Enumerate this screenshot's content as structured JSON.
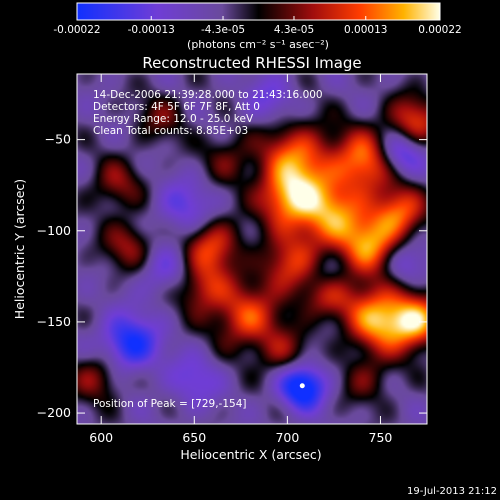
{
  "colorbar": {
    "tick_labels": [
      "-0.00022",
      "-0.00013",
      "-4.3e-05",
      "4.3e-05",
      "0.00013",
      "0.00022"
    ],
    "tick_values": [
      -0.00022,
      -0.00013,
      -4.3e-05,
      4.3e-05,
      0.00013,
      0.00022
    ],
    "range": [
      -0.00022,
      0.00022
    ],
    "units": "(photons cm⁻² s⁻¹ asec⁻²)"
  },
  "chart_data": {
    "type": "heatmap",
    "title": "Reconstructed RHESSI Image",
    "xlabel": "Heliocentric X (arcsec)",
    "ylabel": "Heliocentric Y (arcsec)",
    "xlim": [
      587,
      775
    ],
    "ylim": [
      -206,
      -14
    ],
    "x_ticks": [
      600,
      650,
      700,
      750
    ],
    "y_ticks": [
      -200,
      -150,
      -100,
      -50
    ],
    "x_tick_labels": [
      "600",
      "650",
      "700",
      "750"
    ],
    "y_tick_labels": [
      "−200",
      "−150",
      "−100",
      "−50"
    ],
    "annotations": [
      "14-Dec-2006 21:39:28.000 to 21:43:16.000",
      "Detectors: 4F 5F 6F 7F 8F, Att 0",
      "Energy Range: 12.0 - 25.0 keV",
      "Clean    Total counts: 8.85E+03"
    ],
    "peak_label": "Position of Peak = [729,-154]",
    "peak": [
      729,
      -154
    ],
    "blobs": [
      {
        "x": 705,
        "y": -60,
        "v": 0.8,
        "s": 14
      },
      {
        "x": 742,
        "y": -62,
        "v": 0.9,
        "s": 12
      },
      {
        "x": 768,
        "y": -40,
        "v": 0.7,
        "s": 10
      },
      {
        "x": 722,
        "y": -92,
        "v": 0.9,
        "s": 14
      },
      {
        "x": 700,
        "y": -82,
        "v": 0.8,
        "s": 11
      },
      {
        "x": 760,
        "y": -90,
        "v": 0.8,
        "s": 10
      },
      {
        "x": 745,
        "y": -110,
        "v": 0.85,
        "s": 12
      },
      {
        "x": 700,
        "y": -120,
        "v": 0.65,
        "s": 11
      },
      {
        "x": 720,
        "y": -135,
        "v": 0.6,
        "s": 10
      },
      {
        "x": 750,
        "y": -148,
        "v": 1.0,
        "s": 13
      },
      {
        "x": 770,
        "y": -150,
        "v": 0.9,
        "s": 10
      },
      {
        "x": 678,
        "y": -148,
        "v": 0.75,
        "s": 12
      },
      {
        "x": 655,
        "y": -132,
        "v": 0.6,
        "s": 10
      },
      {
        "x": 660,
        "y": -108,
        "v": 0.7,
        "s": 11
      },
      {
        "x": 698,
        "y": -168,
        "v": 0.45,
        "s": 10
      },
      {
        "x": 615,
        "y": -108,
        "v": 0.5,
        "s": 10
      },
      {
        "x": 608,
        "y": -75,
        "v": 0.45,
        "s": 10
      },
      {
        "x": 598,
        "y": -180,
        "v": 0.5,
        "s": 10
      },
      {
        "x": 742,
        "y": -182,
        "v": 0.35,
        "s": 10
      },
      {
        "x": 668,
        "y": -60,
        "v": 0.35,
        "s": 10
      },
      {
        "x": 632,
        "y": -38,
        "v": 0.35,
        "s": 10
      },
      {
        "x": 708,
        "y": -185,
        "v": -1.0,
        "s": 9
      },
      {
        "x": 615,
        "y": -162,
        "v": -0.8,
        "s": 11
      },
      {
        "x": 760,
        "y": -58,
        "v": -0.7,
        "s": 9
      },
      {
        "x": 762,
        "y": -118,
        "v": -0.55,
        "s": 9
      },
      {
        "x": 720,
        "y": -125,
        "v": -0.4,
        "s": 9
      },
      {
        "x": 645,
        "y": -88,
        "v": -0.45,
        "s": 11
      },
      {
        "x": 633,
        "y": -122,
        "v": -0.35,
        "s": 10
      },
      {
        "x": 690,
        "y": -28,
        "v": -0.35,
        "s": 10
      },
      {
        "x": 650,
        "y": -182,
        "v": -0.4,
        "s": 10
      }
    ]
  },
  "footer": {
    "timestamp": "19-Jul-2013 21:12"
  }
}
